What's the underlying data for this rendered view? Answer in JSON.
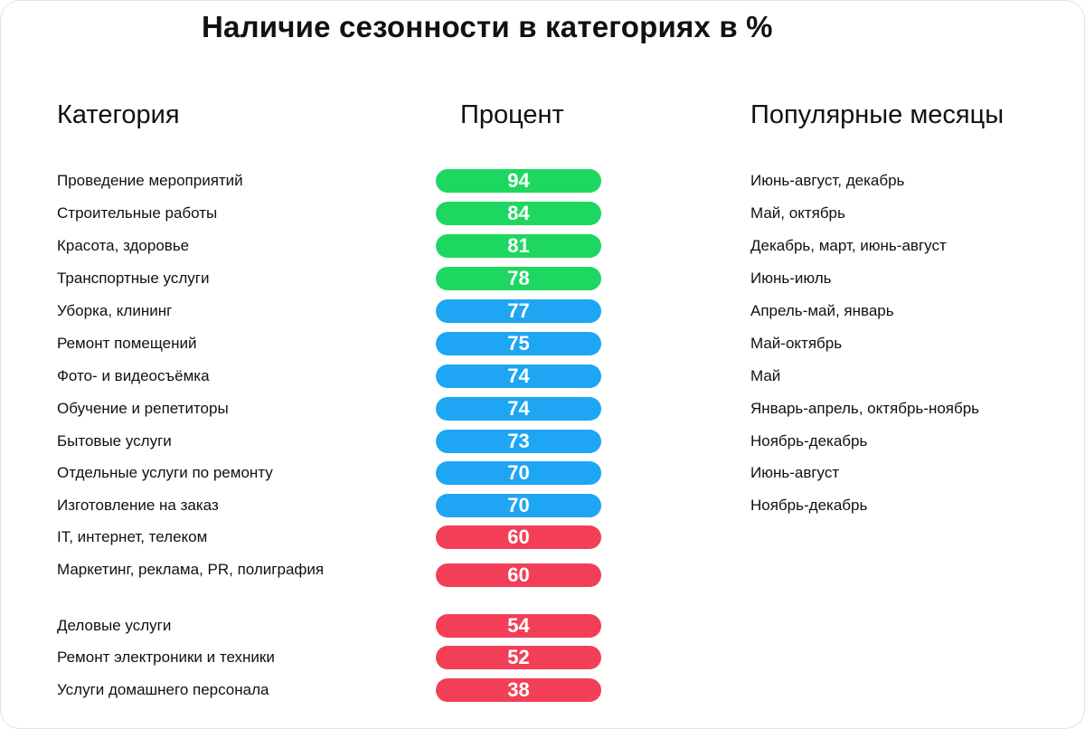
{
  "title": "Наличие сезонности в категориях в %",
  "headers": {
    "category": "Категория",
    "percent": "Процент",
    "months": "Популярные месяцы"
  },
  "colors": {
    "high": "#1ed760",
    "mid": "#1ea6f5",
    "low": "#f23f57"
  },
  "chart_data": {
    "type": "table",
    "columns": [
      "Категория",
      "Процент",
      "Популярные месяцы"
    ],
    "rows": [
      {
        "category": "Проведение мероприятий",
        "percent": 94,
        "months": "Июнь-август, декабрь",
        "tier": "high"
      },
      {
        "category": "Строительные работы",
        "percent": 84,
        "months": "Май, октябрь",
        "tier": "high"
      },
      {
        "category": "Красота, здоровье",
        "percent": 81,
        "months": "Декабрь, март, июнь-август",
        "tier": "high"
      },
      {
        "category": "Транспортные услуги",
        "percent": 78,
        "months": "Июнь-июль",
        "tier": "high"
      },
      {
        "category": "Уборка, клининг",
        "percent": 77,
        "months": "Апрель-май, январь",
        "tier": "mid"
      },
      {
        "category": "Ремонт помещений",
        "percent": 75,
        "months": "Май-октябрь",
        "tier": "mid"
      },
      {
        "category": "Фото- и видеосъёмка",
        "percent": 74,
        "months": "Май",
        "tier": "mid"
      },
      {
        "category": "Обучение и репетиторы",
        "percent": 74,
        "months": "Январь-апрель, октябрь-ноябрь",
        "tier": "mid"
      },
      {
        "category": "Бытовые услуги",
        "percent": 73,
        "months": "Ноябрь-декабрь",
        "tier": "mid"
      },
      {
        "category": "Отдельные услуги по ремонту",
        "percent": 70,
        "months": "Июнь-август",
        "tier": "mid"
      },
      {
        "category": "Изготовление на заказ",
        "percent": 70,
        "months": "Ноябрь-декабрь",
        "tier": "mid"
      },
      {
        "category": "IT, интернет, телеком",
        "percent": 60,
        "months": "",
        "tier": "low"
      },
      {
        "category": "Маркетинг, реклама, PR, полиграфия",
        "percent": 60,
        "months": "",
        "tier": "low"
      },
      {
        "category": "Деловые услуги",
        "percent": 54,
        "months": "",
        "tier": "low"
      },
      {
        "category": "Ремонт электроники и техники",
        "percent": 52,
        "months": "",
        "tier": "low"
      },
      {
        "category": "Услуги домашнего персонала",
        "percent": 38,
        "months": "",
        "tier": "low"
      }
    ]
  }
}
